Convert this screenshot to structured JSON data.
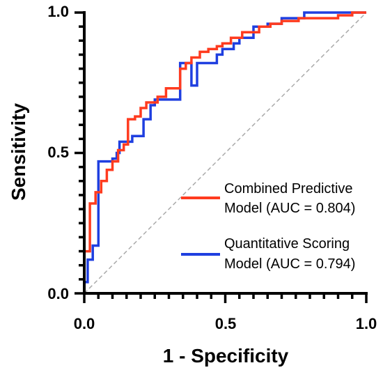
{
  "chart_data": {
    "type": "line",
    "title": "",
    "xlabel": "1 - Specificity",
    "ylabel": "Sensitivity",
    "xlim": [
      0,
      1
    ],
    "ylim": [
      0,
      1
    ],
    "xticks": [
      "0.0",
      "0.5",
      "1.0"
    ],
    "yticks": [
      "0.0",
      "0.5",
      "1.0"
    ],
    "grid": false,
    "legend_position": "bottom-right",
    "reference_line": {
      "style": "dashed",
      "color": "#aaaaaa",
      "points": [
        [
          0,
          0
        ],
        [
          1,
          1
        ]
      ]
    },
    "series": [
      {
        "name_lines": [
          "Combined Predictive",
          "Model (AUC = 0.804)"
        ],
        "color": "#ff3b1f",
        "points": [
          [
            0,
            0
          ],
          [
            0,
            0.15
          ],
          [
            0.02,
            0.15
          ],
          [
            0.02,
            0.32
          ],
          [
            0.04,
            0.32
          ],
          [
            0.04,
            0.36
          ],
          [
            0.06,
            0.36
          ],
          [
            0.06,
            0.4
          ],
          [
            0.08,
            0.4
          ],
          [
            0.08,
            0.44
          ],
          [
            0.1,
            0.44
          ],
          [
            0.1,
            0.47
          ],
          [
            0.12,
            0.47
          ],
          [
            0.12,
            0.51
          ],
          [
            0.14,
            0.51
          ],
          [
            0.14,
            0.53
          ],
          [
            0.155,
            0.53
          ],
          [
            0.155,
            0.62
          ],
          [
            0.18,
            0.62
          ],
          [
            0.18,
            0.63
          ],
          [
            0.2,
            0.63
          ],
          [
            0.2,
            0.66
          ],
          [
            0.22,
            0.66
          ],
          [
            0.22,
            0.68
          ],
          [
            0.26,
            0.68
          ],
          [
            0.26,
            0.7
          ],
          [
            0.29,
            0.7
          ],
          [
            0.29,
            0.73
          ],
          [
            0.34,
            0.73
          ],
          [
            0.34,
            0.8
          ],
          [
            0.36,
            0.8
          ],
          [
            0.36,
            0.82
          ],
          [
            0.38,
            0.82
          ],
          [
            0.38,
            0.84
          ],
          [
            0.41,
            0.84
          ],
          [
            0.41,
            0.86
          ],
          [
            0.44,
            0.86
          ],
          [
            0.44,
            0.87
          ],
          [
            0.47,
            0.87
          ],
          [
            0.47,
            0.88
          ],
          [
            0.49,
            0.88
          ],
          [
            0.49,
            0.89
          ],
          [
            0.52,
            0.89
          ],
          [
            0.52,
            0.91
          ],
          [
            0.56,
            0.91
          ],
          [
            0.56,
            0.93
          ],
          [
            0.62,
            0.93
          ],
          [
            0.62,
            0.95
          ],
          [
            0.66,
            0.95
          ],
          [
            0.66,
            0.96
          ],
          [
            0.7,
            0.96
          ],
          [
            0.7,
            0.97
          ],
          [
            0.76,
            0.97
          ],
          [
            0.76,
            0.98
          ],
          [
            0.9,
            0.98
          ],
          [
            0.9,
            0.99
          ],
          [
            0.95,
            0.99
          ],
          [
            0.95,
            1.0
          ],
          [
            1.0,
            1.0
          ]
        ]
      },
      {
        "name_lines": [
          "Quantitative Scoring",
          "Model (AUC = 0.794)"
        ],
        "color": "#1f3fe0",
        "points": [
          [
            0,
            0
          ],
          [
            0,
            0.04
          ],
          [
            0.012,
            0.04
          ],
          [
            0.012,
            0.12
          ],
          [
            0.03,
            0.12
          ],
          [
            0.03,
            0.17
          ],
          [
            0.05,
            0.17
          ],
          [
            0.05,
            0.47
          ],
          [
            0.1,
            0.47
          ],
          [
            0.1,
            0.48
          ],
          [
            0.115,
            0.48
          ],
          [
            0.115,
            0.5
          ],
          [
            0.125,
            0.5
          ],
          [
            0.125,
            0.54
          ],
          [
            0.17,
            0.54
          ],
          [
            0.17,
            0.56
          ],
          [
            0.21,
            0.56
          ],
          [
            0.21,
            0.62
          ],
          [
            0.235,
            0.62
          ],
          [
            0.235,
            0.67
          ],
          [
            0.25,
            0.67
          ],
          [
            0.25,
            0.69
          ],
          [
            0.34,
            0.69
          ],
          [
            0.34,
            0.82
          ],
          [
            0.38,
            0.82
          ],
          [
            0.38,
            0.74
          ],
          [
            0.4,
            0.74
          ],
          [
            0.4,
            0.82
          ],
          [
            0.47,
            0.82
          ],
          [
            0.47,
            0.85
          ],
          [
            0.49,
            0.85
          ],
          [
            0.49,
            0.87
          ],
          [
            0.53,
            0.87
          ],
          [
            0.53,
            0.89
          ],
          [
            0.55,
            0.89
          ],
          [
            0.55,
            0.91
          ],
          [
            0.6,
            0.91
          ],
          [
            0.6,
            0.95
          ],
          [
            0.65,
            0.95
          ],
          [
            0.65,
            0.96
          ],
          [
            0.7,
            0.96
          ],
          [
            0.7,
            0.98
          ],
          [
            0.78,
            0.98
          ],
          [
            0.78,
            1.0
          ],
          [
            1.0,
            1.0
          ]
        ]
      }
    ]
  }
}
